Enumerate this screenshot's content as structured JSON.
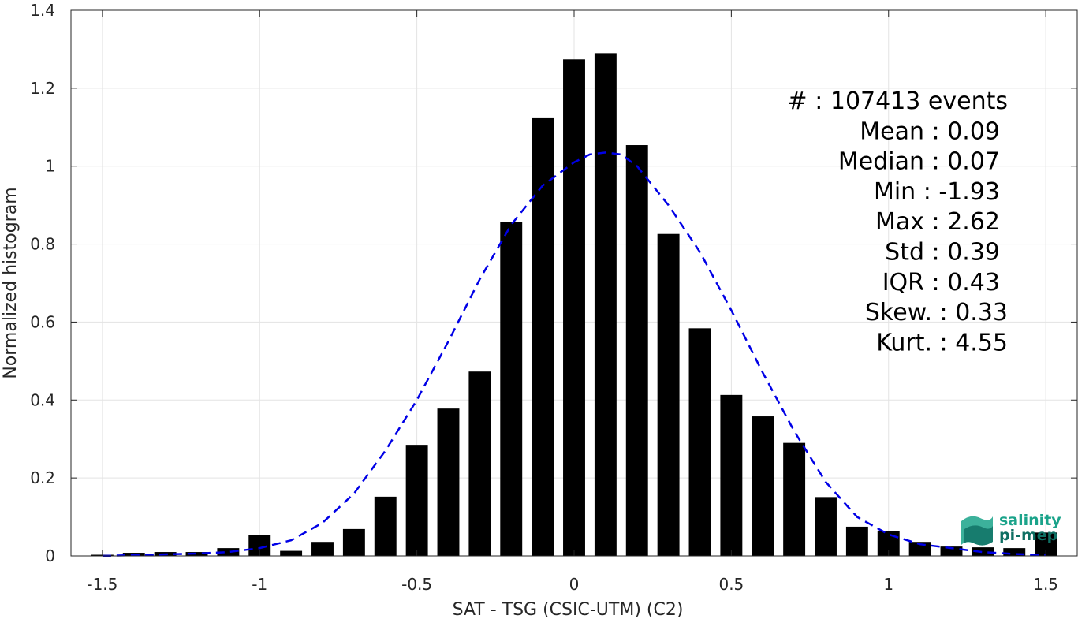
{
  "chart_data": {
    "type": "bar",
    "xlabel": "SAT - TSG (CSIC-UTM) (C2)",
    "ylabel": "Normalized histogram",
    "xlim": [
      -1.6,
      1.6
    ],
    "ylim": [
      0,
      1.4
    ],
    "xticks": [
      -1.5,
      -1,
      -0.5,
      0,
      0.5,
      1,
      1.5
    ],
    "xtick_labels": [
      "-1.5",
      "-1",
      "-0.5",
      "0",
      "0.5",
      "1",
      "1.5"
    ],
    "yticks": [
      0,
      0.2,
      0.4,
      0.6,
      0.8,
      1,
      1.2,
      1.4
    ],
    "ytick_labels": [
      "0",
      "0.2",
      "0.4",
      "0.6",
      "0.8",
      "1",
      "1.2",
      "1.4"
    ],
    "grid": true,
    "bar_width": 0.07,
    "bars": {
      "x": [
        -1.5,
        -1.4,
        -1.3,
        -1.2,
        -1.1,
        -1.0,
        -0.9,
        -0.8,
        -0.7,
        -0.6,
        -0.5,
        -0.4,
        -0.3,
        -0.2,
        -0.1,
        0.0,
        0.1,
        0.2,
        0.3,
        0.4,
        0.5,
        0.6,
        0.7,
        0.8,
        0.9,
        1.0,
        1.1,
        1.2,
        1.3,
        1.4,
        1.5
      ],
      "values": [
        0.003,
        0.008,
        0.01,
        0.01,
        0.02,
        0.053,
        0.013,
        0.036,
        0.069,
        0.152,
        0.285,
        0.378,
        0.473,
        0.857,
        1.123,
        1.274,
        1.29,
        1.054,
        0.826,
        0.584,
        0.413,
        0.358,
        0.29,
        0.151,
        0.075,
        0.063,
        0.036,
        0.024,
        0.022,
        0.02,
        0.06
      ],
      "color": "#000000"
    },
    "fit_curve": {
      "style": "dashed",
      "color": "#0000e6",
      "x": [
        -1.5,
        -1.4,
        -1.3,
        -1.2,
        -1.1,
        -1.0,
        -0.9,
        -0.8,
        -0.7,
        -0.6,
        -0.5,
        -0.4,
        -0.3,
        -0.2,
        -0.1,
        0.0,
        0.05,
        0.1,
        0.15,
        0.2,
        0.3,
        0.4,
        0.5,
        0.6,
        0.7,
        0.8,
        0.9,
        1.0,
        1.1,
        1.2,
        1.3,
        1.4,
        1.5
      ],
      "y": [
        0.0,
        0.002,
        0.004,
        0.006,
        0.01,
        0.02,
        0.04,
        0.085,
        0.16,
        0.27,
        0.4,
        0.55,
        0.71,
        0.85,
        0.95,
        1.01,
        1.03,
        1.035,
        1.03,
        1.0,
        0.9,
        0.78,
        0.63,
        0.47,
        0.32,
        0.19,
        0.1,
        0.055,
        0.03,
        0.02,
        0.01,
        0.005,
        0.002
      ]
    },
    "stats": [
      {
        "label": "#  ",
        "value": ": 107413 events"
      },
      {
        "label": "Mean ",
        "value": ": 0.09"
      },
      {
        "label": "Median ",
        "value": ": 0.07"
      },
      {
        "label": "Min ",
        "value": ": -1.93"
      },
      {
        "label": "Max ",
        "value": ": 2.62"
      },
      {
        "label": "Std ",
        "value": ": 0.39"
      },
      {
        "label": "IQR ",
        "value": ": 0.43"
      },
      {
        "label": "Skew. ",
        "value": ": 0.33"
      },
      {
        "label": "Kurt. ",
        "value": ": 4.55"
      }
    ],
    "stats_text": [
      "#  : 107413 events",
      "Mean : 0.09",
      "Median : 0.07",
      "Min : -1.93",
      "Max : 2.62",
      "Std : 0.39",
      "IQR : 0.43",
      "Skew. : 0.33",
      "Kurt. : 4.55"
    ]
  },
  "logo": {
    "line1": "salinity",
    "line2": "pi-mep",
    "colors": [
      "#1aa38a",
      "#0e6f63"
    ]
  }
}
